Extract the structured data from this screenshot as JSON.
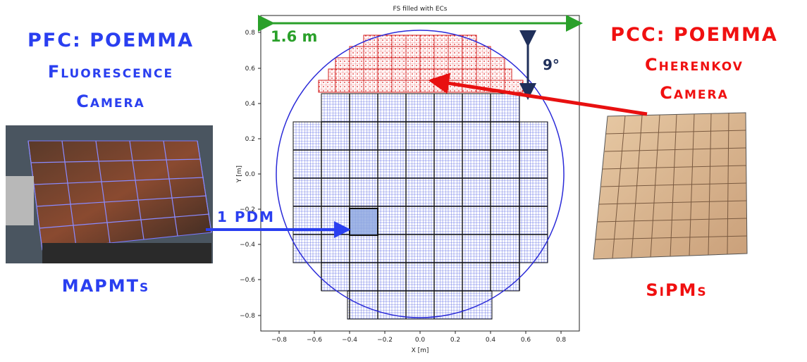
{
  "plot": {
    "title": "FS filled with ECs",
    "xlabel": "X [m]",
    "ylabel": "Y [m]",
    "xticks": [
      "−0.8",
      "−0.6",
      "−0.4",
      "−0.2",
      "0.0",
      "0.2",
      "0.4",
      "0.6",
      "0.8"
    ],
    "yticks": [
      "0.8",
      "0.6",
      "0.4",
      "0.2",
      "0.0",
      "−0.2",
      "−0.4",
      "−0.6",
      "−0.8"
    ]
  },
  "annotations": {
    "width_label": "1.6 m",
    "angle_label": "9°",
    "pdm_label": "1 PDM"
  },
  "pfc": {
    "line1": "PFC: POEMMA",
    "line2": "Fluorescence",
    "line3": "Camera",
    "sensor": "MAPMTs"
  },
  "pcc": {
    "line1": "PCC: POEMMA",
    "line2": "Cherenkov",
    "line3": "Camera",
    "sensor": "SiPMs"
  },
  "colors": {
    "blue_text": "#2a3ff0",
    "red_text": "#f01010",
    "green_arrow": "#2aa02a",
    "navy_arrow": "#1f2f5a",
    "circle": "#2a2ad8"
  },
  "icons": {
    "pfc_photo": "mapmt-camera-photo",
    "pcc_photo": "sipm-array-photo"
  }
}
